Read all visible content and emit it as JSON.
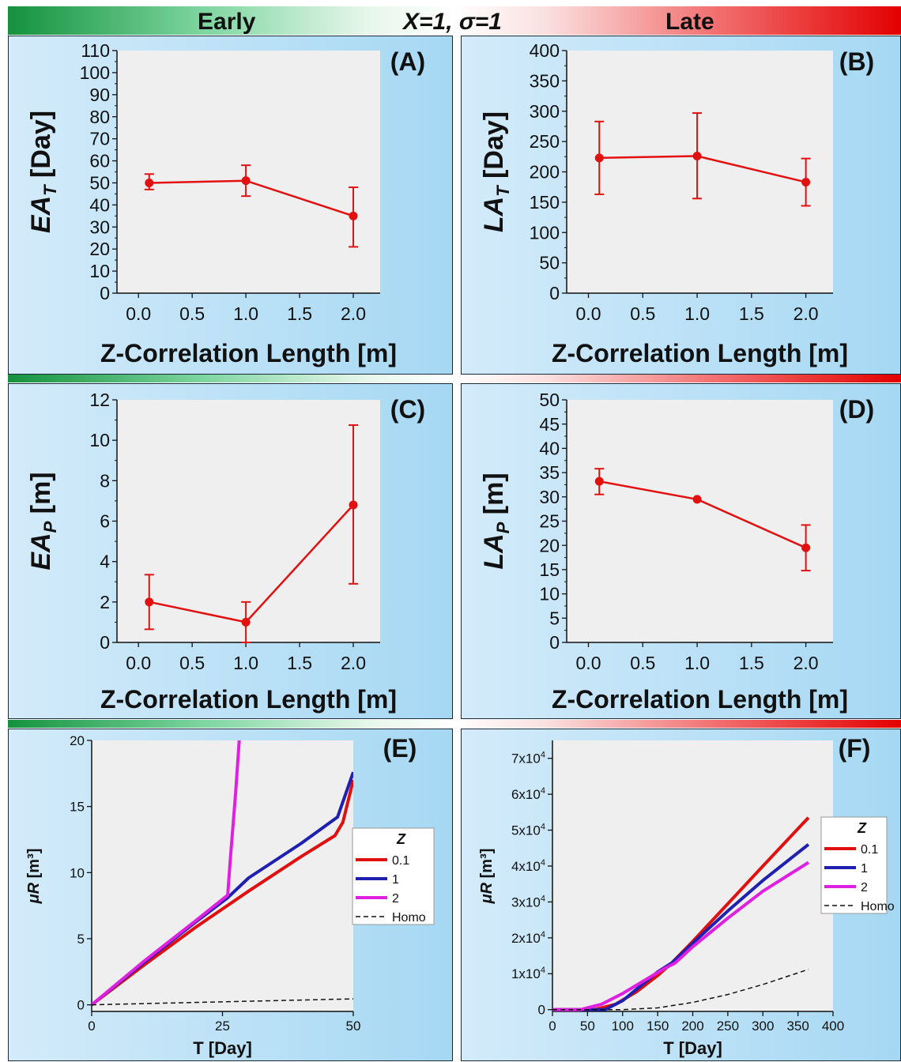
{
  "header": {
    "early": "Early",
    "params": "X=1, σ=1",
    "late": "Late"
  },
  "charts": [
    {
      "letter": "(A)",
      "type": "line",
      "ylabel_main": "EA",
      "ylabel_sub": "T",
      "ylabel_unit": " [Day]",
      "xlabel": "Z-Correlation Length [m]",
      "xlim": [
        -0.2,
        2.25
      ],
      "ylim": [
        0,
        110
      ],
      "xticks": [
        "0.0",
        "0.5",
        "1.0",
        "1.5",
        "2.0"
      ],
      "yticks": [
        "0",
        "10",
        "20",
        "30",
        "40",
        "50",
        "60",
        "70",
        "80",
        "90",
        "100",
        "110"
      ],
      "x": [
        0.1,
        1.0,
        2.0
      ],
      "y": [
        50,
        51,
        35
      ],
      "err_low": [
        47,
        44,
        21
      ],
      "err_high": [
        54,
        58,
        48
      ]
    },
    {
      "letter": "(B)",
      "type": "line",
      "ylabel_main": "LA",
      "ylabel_sub": "T",
      "ylabel_unit": " [Day]",
      "xlabel": "Z-Correlation Length [m]",
      "xlim": [
        -0.2,
        2.25
      ],
      "ylim": [
        0,
        400
      ],
      "xticks": [
        "0.0",
        "0.5",
        "1.0",
        "1.5",
        "2.0"
      ],
      "yticks": [
        "0",
        "50",
        "100",
        "150",
        "200",
        "250",
        "300",
        "350",
        "400"
      ],
      "x": [
        0.1,
        1.0,
        2.0
      ],
      "y": [
        223,
        226,
        183
      ],
      "err_low": [
        163,
        156,
        144
      ],
      "err_high": [
        283,
        297,
        222
      ]
    },
    {
      "letter": "(C)",
      "type": "line",
      "ylabel_main": "EA",
      "ylabel_sub": "P",
      "ylabel_unit": " [m]",
      "xlabel": "Z-Correlation Length [m]",
      "xlim": [
        -0.2,
        2.25
      ],
      "ylim": [
        0,
        12
      ],
      "xticks": [
        "0.0",
        "0.5",
        "1.0",
        "1.5",
        "2.0"
      ],
      "yticks": [
        "0",
        "2",
        "4",
        "6",
        "8",
        "10",
        "12"
      ],
      "x": [
        0.1,
        1.0,
        2.0
      ],
      "y": [
        2.0,
        1.0,
        6.8
      ],
      "err_low": [
        0.65,
        0.0,
        2.9
      ],
      "err_high": [
        3.35,
        2.0,
        10.75
      ]
    },
    {
      "letter": "(D)",
      "type": "line",
      "ylabel_main": "LA",
      "ylabel_sub": "P",
      "ylabel_unit": " [m]",
      "xlabel": "Z-Correlation Length [m]",
      "xlim": [
        -0.2,
        2.25
      ],
      "ylim": [
        0,
        50
      ],
      "xticks": [
        "0.0",
        "0.5",
        "1.0",
        "1.5",
        "2.0"
      ],
      "yticks": [
        "0",
        "5",
        "10",
        "15",
        "20",
        "25",
        "30",
        "35",
        "40",
        "45",
        "50"
      ],
      "x": [
        0.1,
        1.0,
        2.0
      ],
      "y": [
        33.2,
        29.5,
        19.5
      ],
      "err_low": [
        30.5,
        29.5,
        14.8
      ],
      "err_high": [
        35.8,
        29.5,
        24.2
      ]
    },
    {
      "letter": "(E)",
      "type": "line",
      "ylabel_main": "μR",
      "ylabel_unit": " [m³]",
      "xlabel": "T [Day]",
      "xlim": [
        0,
        50
      ],
      "ylim": [
        -0.5,
        20
      ],
      "xticks": [
        "0",
        "25",
        "50"
      ],
      "xtick_values": [
        0,
        25,
        50
      ],
      "yticks": [
        "0",
        "5",
        "10",
        "15",
        "20"
      ],
      "ytick_values": [
        0,
        5,
        10,
        15,
        20
      ],
      "legend_title": "Z",
      "series": [
        {
          "name": "0.1",
          "color": "#e01010",
          "x": [
            0,
            10,
            20,
            30,
            40,
            46.5,
            48,
            50
          ],
          "y": [
            0,
            3.0,
            5.9,
            8.6,
            11.2,
            12.8,
            13.8,
            17.0
          ]
        },
        {
          "name": "1",
          "color": "#1f1fb0",
          "x": [
            0,
            10,
            20,
            26,
            30,
            40,
            47,
            50
          ],
          "y": [
            0,
            3.2,
            6.3,
            8.1,
            9.6,
            12.2,
            14.2,
            17.6
          ]
        },
        {
          "name": "2",
          "color": "#e020e0",
          "x": [
            0,
            10,
            20,
            26,
            26.5,
            27.5,
            28.2
          ],
          "y": [
            0,
            3.3,
            6.4,
            8.3,
            11.0,
            16.0,
            20.0
          ]
        },
        {
          "name": "Homo",
          "color": "#111111",
          "dash": true,
          "x": [
            0,
            50
          ],
          "y": [
            0,
            0.45
          ]
        }
      ]
    },
    {
      "letter": "(F)",
      "type": "line",
      "ylabel_main": "μR",
      "ylabel_unit": " [m³]",
      "xlabel": "T [Day]",
      "xlim": [
        0,
        400
      ],
      "ylim": [
        -500,
        75000
      ],
      "xticks": [
        "0",
        "50",
        "100",
        "150",
        "200",
        "250",
        "300",
        "350",
        "400"
      ],
      "xtick_values": [
        0,
        50,
        100,
        150,
        200,
        250,
        300,
        350,
        400
      ],
      "yticks": [
        "0",
        "1x10⁴",
        "2x10⁴",
        "3x10⁴",
        "4x10⁴",
        "5x10⁴",
        "6x10⁴",
        "7x10⁴"
      ],
      "ytick_values": [
        0,
        10000,
        20000,
        30000,
        40000,
        50000,
        60000,
        70000
      ],
      "legend_title": "Z",
      "series": [
        {
          "name": "0.1",
          "color": "#e01010",
          "x": [
            0,
            60,
            90,
            120,
            150,
            170,
            200,
            250,
            300,
            365
          ],
          "y": [
            0,
            0,
            1500,
            5000,
            9500,
            13000,
            19000,
            29500,
            40000,
            53500
          ]
        },
        {
          "name": "1",
          "color": "#1f1fb0",
          "x": [
            0,
            75,
            100,
            125,
            150,
            170,
            200,
            250,
            300,
            365
          ],
          "y": [
            0,
            0,
            2500,
            6500,
            10500,
            13000,
            18500,
            27500,
            36000,
            46000
          ]
        },
        {
          "name": "2",
          "color": "#e020e0",
          "x": [
            0,
            40,
            70,
            100,
            130,
            160,
            175,
            200,
            250,
            300,
            365
          ],
          "y": [
            0,
            0,
            1500,
            4500,
            8000,
            11500,
            13000,
            17500,
            25500,
            33000,
            41000
          ]
        },
        {
          "name": "Homo",
          "color": "#111111",
          "dash": true,
          "x": [
            0,
            100,
            150,
            200,
            250,
            300,
            365
          ],
          "y": [
            0,
            0,
            500,
            2000,
            4200,
            7000,
            11200
          ]
        }
      ]
    }
  ]
}
